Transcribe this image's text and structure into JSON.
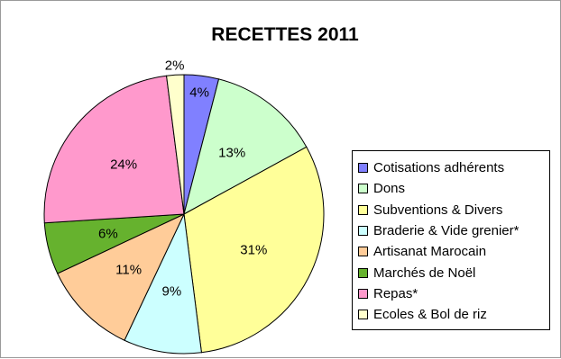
{
  "chart_data": {
    "type": "pie",
    "title": "RECETTES 2011",
    "slices": [
      {
        "name": "Cotisations adhérents",
        "value": 4,
        "label": "4%",
        "color": "#8080ff"
      },
      {
        "name": "Dons",
        "value": 13,
        "label": "13%",
        "color": "#ccffcc"
      },
      {
        "name": "Subventions & Divers",
        "value": 31,
        "label": "31%",
        "color": "#ffff99"
      },
      {
        "name": "Braderie & Vide grenier*",
        "value": 9,
        "label": "9%",
        "color": "#ccffff"
      },
      {
        "name": "Artisanat Marocain",
        "value": 11,
        "label": "11%",
        "color": "#ffcc99"
      },
      {
        "name": "Marchés de Noël",
        "value": 6,
        "label": "6%",
        "color": "#66b22e"
      },
      {
        "name": "Repas*",
        "value": 24,
        "label": "24%",
        "color": "#ff99cc"
      },
      {
        "name": "Ecoles & Bol de riz",
        "value": 2,
        "label": "2%",
        "color": "#ffffcc"
      }
    ],
    "start_angle": "12 o'clock",
    "direction": "clockwise",
    "legend_position": "right"
  }
}
